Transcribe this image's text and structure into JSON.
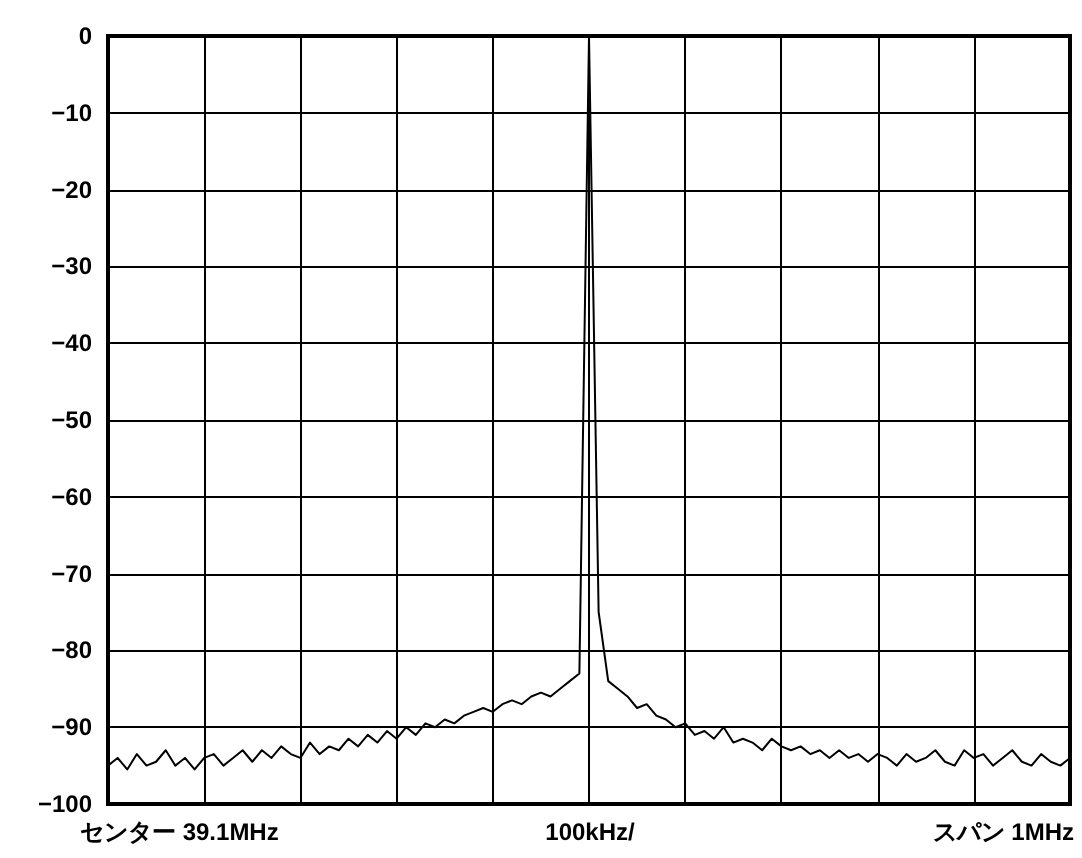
{
  "chart_data": {
    "type": "line",
    "annotations": [
      "センター 39.1MHz",
      "100kHz/",
      "スパン 1MHz"
    ],
    "categories": [
      null,
      null,
      null,
      null,
      null,
      null,
      null,
      null,
      null,
      null,
      null,
      null,
      null,
      null,
      null,
      null,
      null,
      null,
      null,
      null,
      null,
      null,
      null,
      null,
      null,
      null,
      null,
      null,
      null,
      null,
      null,
      null,
      null,
      null,
      null,
      null,
      null,
      null,
      null,
      null,
      null,
      null,
      null,
      null,
      null,
      null,
      null,
      null,
      null,
      null,
      null,
      null,
      null,
      null,
      null,
      null,
      null,
      null,
      null,
      null,
      null,
      null,
      null,
      null,
      null,
      null,
      null,
      null,
      null,
      null,
      null,
      null,
      null,
      null,
      null,
      null,
      null,
      null,
      null,
      null,
      null,
      null,
      null,
      null,
      null,
      null,
      null,
      null,
      null,
      null,
      null,
      null,
      null,
      null,
      null,
      null,
      null,
      null,
      null,
      null,
      null
    ],
    "series": [
      {
        "color": "#000000",
        "values": [
          -95,
          -94,
          -95.5,
          -93.5,
          -95,
          -94.5,
          -93,
          -95,
          -94,
          -95.5,
          -94,
          -93.5,
          -95,
          -94,
          -93,
          -94.5,
          -93,
          -94,
          -92.5,
          -93.5,
          -94,
          -92,
          -93.5,
          -92.5,
          -93,
          -91.5,
          -92.5,
          -91,
          -92,
          -90.5,
          -91.5,
          -90,
          -91,
          -89.5,
          -90,
          -89,
          -89.5,
          -88.5,
          -88,
          -87.5,
          -88,
          -87,
          -86.5,
          -87,
          -86,
          -85.5,
          -86,
          -85,
          -84,
          -83,
          0,
          -75,
          -84,
          -85,
          -86,
          -87.5,
          -87,
          -88.5,
          -89,
          -90,
          -89.5,
          -91,
          -90.5,
          -91.5,
          -90,
          -92,
          -91.5,
          -92,
          -93,
          -91.5,
          -92.5,
          -93,
          -92.5,
          -93.5,
          -93,
          -94,
          -93,
          -94,
          -93.5,
          -94.5,
          -93.5,
          -94,
          -95,
          -93.5,
          -94.5,
          -94,
          -93,
          -94.5,
          -95,
          -93,
          -94,
          -93.5,
          -95,
          -94,
          -93,
          -94.5,
          -95,
          -93.5,
          -94.5,
          -95,
          -94
        ]
      }
    ],
    "ylim": [
      -100,
      0
    ],
    "yticks": [
      {
        "value": -100,
        "label": "−100"
      },
      {
        "value": -90,
        "label": "−90"
      },
      {
        "value": -80,
        "label": "−80"
      },
      {
        "value": -70,
        "label": "−70"
      },
      {
        "value": -60,
        "label": "−60"
      },
      {
        "value": -50,
        "label": "−50"
      },
      {
        "value": -40,
        "label": "−40"
      },
      {
        "value": -30,
        "label": "−30"
      },
      {
        "value": -20,
        "label": "−20"
      },
      {
        "value": -10,
        "label": "−10"
      },
      {
        "value": 0,
        "label": "0"
      }
    ],
    "grid": true,
    "marker": "none"
  }
}
